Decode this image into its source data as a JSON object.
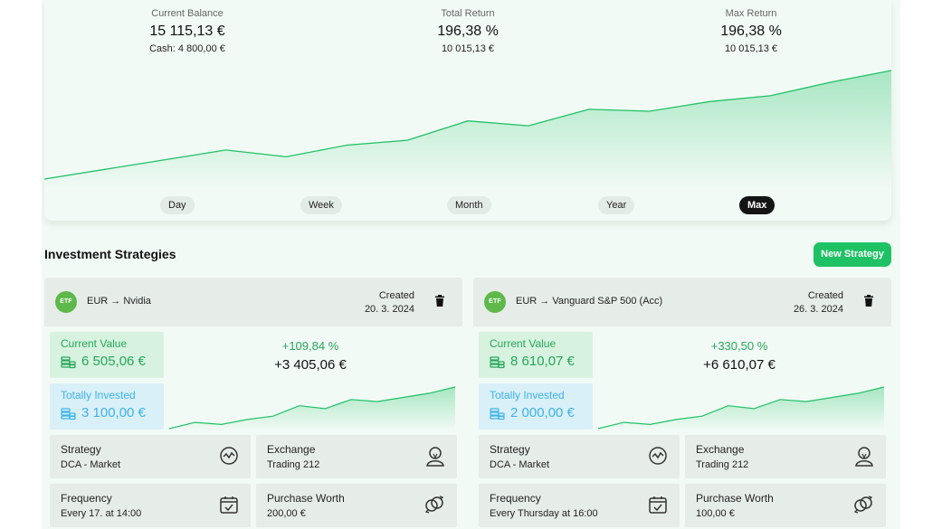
{
  "summary": {
    "current_balance": {
      "label": "Current Balance",
      "value": "15 115,13 €",
      "sub": "Cash: 4 800,00 €"
    },
    "total_return": {
      "label": "Total Return",
      "value": "196,38 %",
      "sub": "10 015,13 €"
    },
    "max_return": {
      "label": "Max Return",
      "value": "196,38 %",
      "sub": "10 015,13 €"
    }
  },
  "chart_data": {
    "type": "area",
    "x": [
      0,
      1,
      2,
      3,
      4,
      5,
      6,
      7,
      8,
      9,
      10,
      11,
      12,
      13,
      14
    ],
    "values": [
      0,
      0.1,
      0.2,
      0.3,
      0.23,
      0.35,
      0.4,
      0.6,
      0.55,
      0.72,
      0.7,
      0.8,
      0.86,
      1.0,
      1.12
    ],
    "color": "#1ec265"
  },
  "ranges": [
    {
      "label": "Day",
      "active": false
    },
    {
      "label": "Week",
      "active": false
    },
    {
      "label": "Month",
      "active": false
    },
    {
      "label": "Year",
      "active": false
    },
    {
      "label": "Max",
      "active": true
    }
  ],
  "section_title": "Investment Strategies",
  "new_strategy_label": "New Strategy",
  "strategies": [
    {
      "icon_label": "ETF",
      "pair": "EUR → Nvidia",
      "created_label": "Created",
      "created_date": "20. 3. 2024",
      "current_value_label": "Current Value",
      "current_value": "6 505,06 €",
      "invested_label": "Totally Invested",
      "invested": "3 100,00 €",
      "return_pct": "+109,84 %",
      "return_abs": "+3 405,06 €",
      "mini_chart": [
        0,
        0.15,
        0.1,
        0.22,
        0.3,
        0.55,
        0.48,
        0.7,
        0.65,
        0.75,
        0.85,
        1.0
      ],
      "strategy_label": "Strategy",
      "strategy_value": "DCA - Market",
      "exchange_label": "Exchange",
      "exchange_value": "Trading 212",
      "frequency_label": "Frequency",
      "frequency_value": "Every 17. at 14:00",
      "worth_label": "Purchase Worth",
      "worth_value": "200,00 €"
    },
    {
      "icon_label": "ETF",
      "pair": "EUR → Vanguard S&P 500 (Acc)",
      "created_label": "Created",
      "created_date": "26. 3. 2024",
      "current_value_label": "Current Value",
      "current_value": "8 610,07 €",
      "invested_label": "Totally Invested",
      "invested": "2 000,00 €",
      "return_pct": "+330,50 %",
      "return_abs": "+6 610,07 €",
      "mini_chart": [
        0,
        0.15,
        0.1,
        0.22,
        0.3,
        0.55,
        0.48,
        0.7,
        0.65,
        0.75,
        0.85,
        1.0
      ],
      "strategy_label": "Strategy",
      "strategy_value": "DCA - Market",
      "exchange_label": "Exchange",
      "exchange_value": "Trading 212",
      "frequency_label": "Frequency",
      "frequency_value": "Every Thursday at 16:00",
      "worth_label": "Purchase Worth",
      "worth_value": "100,00 €"
    }
  ]
}
